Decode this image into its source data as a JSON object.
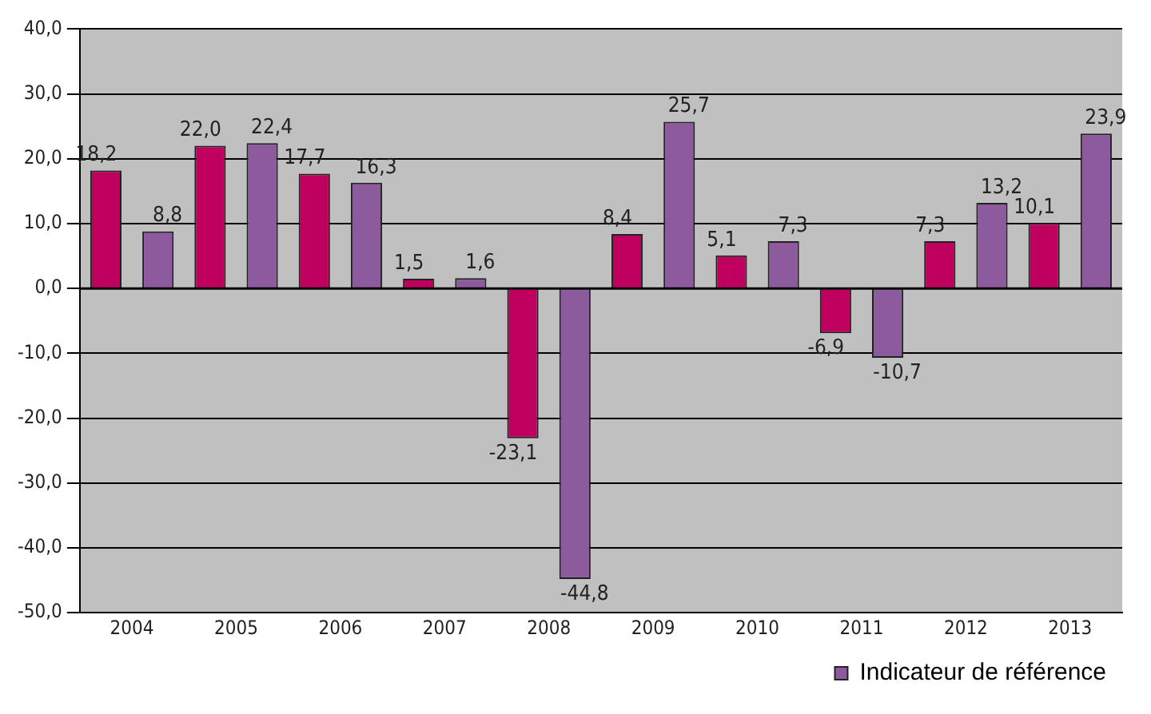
{
  "chart_data": {
    "type": "bar",
    "categories": [
      "2004",
      "2005",
      "2006",
      "2007",
      "2008",
      "2009",
      "2010",
      "2011",
      "2012",
      "2013"
    ],
    "series": [
      {
        "color": "#c0005e",
        "values": [
          18.2,
          22.0,
          17.7,
          1.5,
          -23.1,
          8.4,
          5.1,
          -6.9,
          7.3,
          10.1
        ],
        "value_labels": [
          "18,2",
          "22,0",
          "17,7",
          "1,5",
          "-23,1",
          "8,4",
          "5,1",
          "-6,9",
          "7,3",
          "10,1"
        ]
      },
      {
        "name": "Indicateur de référence",
        "color": "#8e5a9e",
        "values": [
          8.8,
          22.4,
          16.3,
          1.6,
          -44.8,
          25.7,
          7.3,
          -10.7,
          13.2,
          23.9
        ],
        "value_labels": [
          "8,8",
          "22,4",
          "16,3",
          "1,6",
          "-44,8",
          "25,7",
          "7,3",
          "-10,7",
          "13,2",
          "23,9"
        ]
      }
    ],
    "ylim": [
      -50,
      40
    ],
    "yticks": [
      {
        "value": -50,
        "label": "-50,0"
      },
      {
        "value": -40,
        "label": "-40,0"
      },
      {
        "value": -30,
        "label": "-30,0"
      },
      {
        "value": -20,
        "label": "-20,0"
      },
      {
        "value": -10,
        "label": "-10,0"
      },
      {
        "value": 0,
        "label": "0,0"
      },
      {
        "value": 10,
        "label": "10,0"
      },
      {
        "value": 20,
        "label": "20,0"
      },
      {
        "value": 30,
        "label": "30,0"
      },
      {
        "value": 40,
        "label": "40,0"
      }
    ],
    "grid": "y",
    "legend": "bottom"
  }
}
